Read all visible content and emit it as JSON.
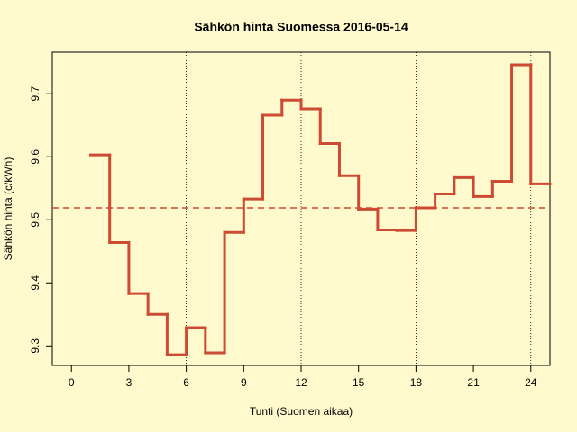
{
  "chart_data": {
    "type": "step",
    "title": "Sähkön hinta Suomessa 2016-05-14",
    "x_label": "Tunti (Suomen aikaa)",
    "y_label": "Sähkön hinta (c/kWh)",
    "x": [
      1,
      2,
      3,
      4,
      5,
      6,
      7,
      8,
      9,
      10,
      11,
      12,
      13,
      14,
      15,
      16,
      17,
      18,
      19,
      20,
      21,
      22,
      23,
      24,
      25
    ],
    "values": [
      9.603,
      9.464,
      9.383,
      9.35,
      9.286,
      9.329,
      9.289,
      9.48,
      9.533,
      9.666,
      9.69,
      9.676,
      9.621,
      9.57,
      9.517,
      9.484,
      9.483,
      9.519,
      9.541,
      9.567,
      9.537,
      9.561,
      9.746,
      9.557,
      9.557
    ],
    "color": "#cd4a33",
    "mean_line": 9.519,
    "vlines": [
      6,
      12,
      18,
      24
    ],
    "xlim": [
      -1,
      25
    ],
    "ylim": [
      9.269,
      9.766
    ],
    "xticks": [
      0,
      3,
      6,
      9,
      12,
      15,
      18,
      21,
      24
    ],
    "yticks": [
      9.3,
      9.4,
      9.5,
      9.6,
      9.7
    ]
  }
}
